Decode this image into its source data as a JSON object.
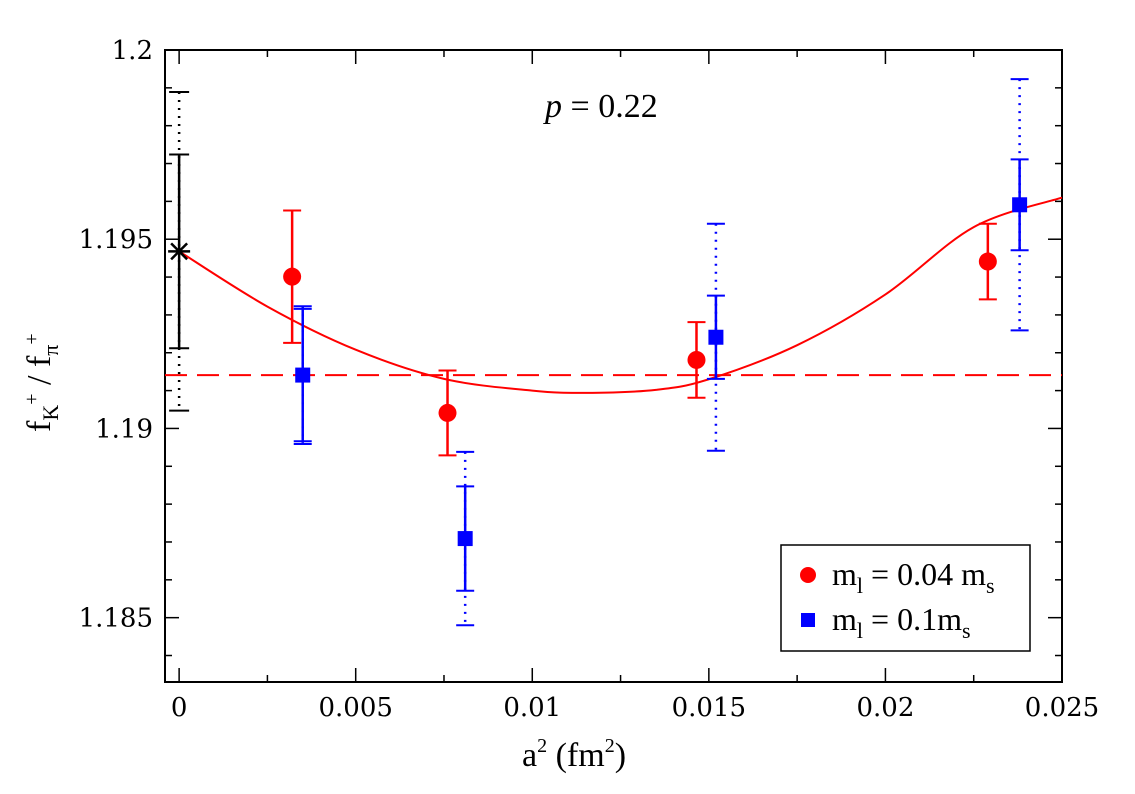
{
  "chart_data": {
    "type": "scatter",
    "title": "",
    "annotation": {
      "var": "p",
      "eq": " = ",
      "value": "0.22"
    },
    "xlabel": {
      "main": "a",
      "sup": "2",
      "unit_open": " (fm",
      "unit_sup": "2",
      "unit_close": ")"
    },
    "ylabel": {
      "f": "f",
      "num_sub": "K",
      "num_sup": "+",
      "sep": " / ",
      "den_sub": "π",
      "den_sup": "+"
    },
    "xlim": [
      -0.0004,
      0.025
    ],
    "ylim": [
      1.1833,
      1.2
    ],
    "xticks": [
      0,
      0.005,
      0.01,
      0.015,
      0.02,
      0.025
    ],
    "xtick_labels": [
      "0",
      "0.005",
      "0.01",
      "0.015",
      "0.02",
      "0.025"
    ],
    "yticks": [
      1.185,
      1.19,
      1.195,
      1.2
    ],
    "ytick_labels": [
      "1.185",
      "1.19",
      "1.195",
      "1.2"
    ],
    "series": [
      {
        "name": "red",
        "legend": {
          "m": "m",
          "sub": "l",
          "eq": " = 0.04 m",
          "sub2": "s"
        },
        "color": "#ff0000",
        "marker": "circle",
        "points": [
          {
            "x": 0.0032,
            "y": 1.19401,
            "err": 0.00175
          },
          {
            "x": 0.0076,
            "y": 1.19041,
            "err": 0.00112
          },
          {
            "x": 0.01465,
            "y": 1.19181,
            "err": 0.001
          },
          {
            "x": 0.0229,
            "y": 1.19441,
            "err": 0.001
          }
        ]
      },
      {
        "name": "blue",
        "legend": {
          "m": "m",
          "sub": "l",
          "eq": " = 0.1m",
          "sub2": "s"
        },
        "color": "#0000ff",
        "marker": "square",
        "points": [
          {
            "x": 0.0035,
            "y": 1.19141,
            "err": 0.00175,
            "err_sys": 0.00182
          },
          {
            "x": 0.0081,
            "y": 1.18709,
            "err": 0.00138,
            "err_sys": 0.00229
          },
          {
            "x": 0.0152,
            "y": 1.19241,
            "err": 0.0011,
            "err_sys": 0.003
          },
          {
            "x": 0.0238,
            "y": 1.19591,
            "err": 0.0012,
            "err_sys": 0.00332
          }
        ]
      }
    ],
    "extrapolated": {
      "x": 0,
      "y": 1.19468,
      "err": 0.00256,
      "err_sys": 0.00421,
      "color": "#000000",
      "marker": "star"
    },
    "fit_curve": {
      "color": "#ff0000",
      "x": [
        0,
        0.0025,
        0.005,
        0.0075,
        0.01,
        0.0115,
        0.0135,
        0.015,
        0.0175,
        0.02,
        0.0225,
        0.025
      ],
      "y": [
        1.19468,
        1.19322,
        1.19208,
        1.19131,
        1.191,
        1.19094,
        1.19102,
        1.1913,
        1.1922,
        1.19354,
        1.19532,
        1.1961
      ]
    },
    "const_fit": {
      "y": 1.19141,
      "style": "dashed",
      "color": "#ff0000"
    },
    "legend_position": "bottom-right",
    "grid": false
  }
}
